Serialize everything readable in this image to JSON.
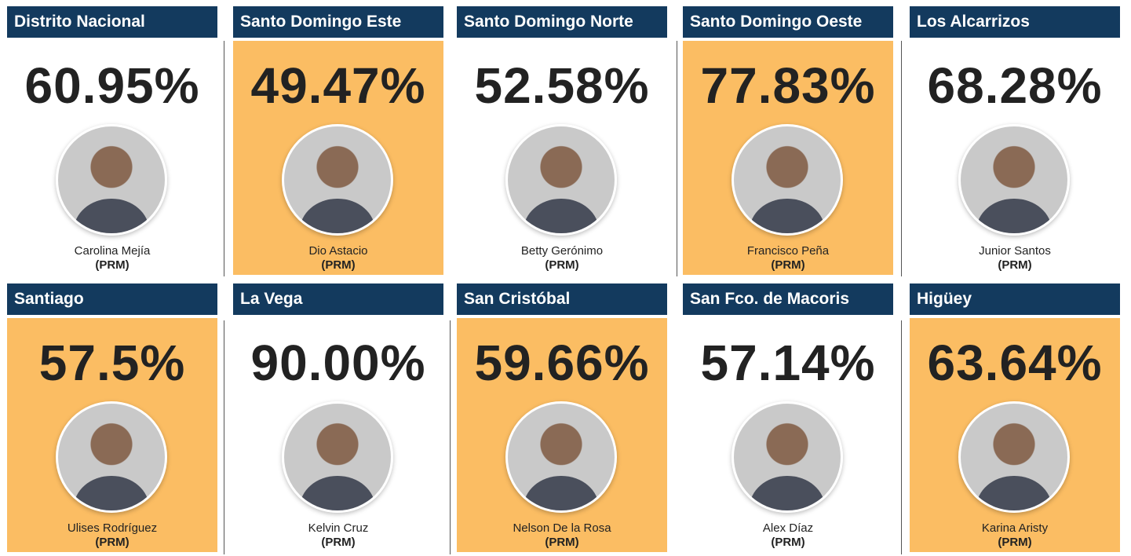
{
  "cards": [
    {
      "region": "Distrito Nacional",
      "percent": "60.95%",
      "name": "Carolina Mejía",
      "party": "(PRM)",
      "highlighted": false
    },
    {
      "region": "Santo Domingo Este",
      "percent": "49.47%",
      "name": "Dio Astacio",
      "party": "(PRM)",
      "highlighted": true
    },
    {
      "region": "Santo Domingo Norte",
      "percent": "52.58%",
      "name": "Betty Gerónimo",
      "party": "(PRM)",
      "highlighted": false
    },
    {
      "region": "Santo Domingo Oeste",
      "percent": "77.83%",
      "name": "Francisco Peña",
      "party": "(PRM)",
      "highlighted": true
    },
    {
      "region": "Los Alcarrizos",
      "percent": "68.28%",
      "name": "Junior Santos",
      "party": "(PRM)",
      "highlighted": false
    },
    {
      "region": "Santiago",
      "percent": "57.5%",
      "name": "Ulises Rodríguez",
      "party": "(PRM)",
      "highlighted": true
    },
    {
      "region": "La Vega",
      "percent": "90.00%",
      "name": "Kelvin Cruz",
      "party": "(PRM)",
      "highlighted": false
    },
    {
      "region": "San Cristóbal",
      "percent": "59.66%",
      "name": "Nelson De la Rosa",
      "party": "(PRM)",
      "highlighted": true
    },
    {
      "region": "San Fco. de Macoris",
      "percent": "57.14%",
      "name": "Alex Díaz",
      "party": "(PRM)",
      "highlighted": false
    },
    {
      "region": "Higüey",
      "percent": "63.64%",
      "name": "Karina Aristy",
      "party": "(PRM)",
      "highlighted": true
    }
  ]
}
